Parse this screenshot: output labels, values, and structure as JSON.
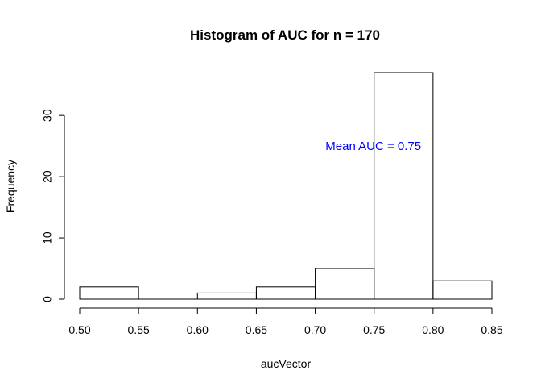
{
  "chart_data": {
    "type": "bar",
    "title": "Histogram of AUC for n =  170",
    "xlabel": "aucVector",
    "ylabel": "Frequency",
    "bins": [
      {
        "from": 0.5,
        "to": 0.55,
        "count": 2
      },
      {
        "from": 0.55,
        "to": 0.6,
        "count": 0
      },
      {
        "from": 0.6,
        "to": 0.65,
        "count": 1
      },
      {
        "from": 0.65,
        "to": 0.7,
        "count": 2
      },
      {
        "from": 0.7,
        "to": 0.75,
        "count": 5
      },
      {
        "from": 0.75,
        "to": 0.8,
        "count": 37
      },
      {
        "from": 0.8,
        "to": 0.85,
        "count": 3
      }
    ],
    "x_ticks": [
      "0.50",
      "0.55",
      "0.60",
      "0.65",
      "0.70",
      "0.75",
      "0.80",
      "0.85"
    ],
    "y_ticks": [
      "0",
      "10",
      "20",
      "30"
    ],
    "xlim": [
      0.5,
      0.85
    ],
    "ylim": [
      0,
      37
    ],
    "grid": false,
    "annotation": {
      "text": "Mean AUC =  0.75",
      "x": 0.75,
      "y": 25,
      "color": "#0000ff"
    }
  }
}
